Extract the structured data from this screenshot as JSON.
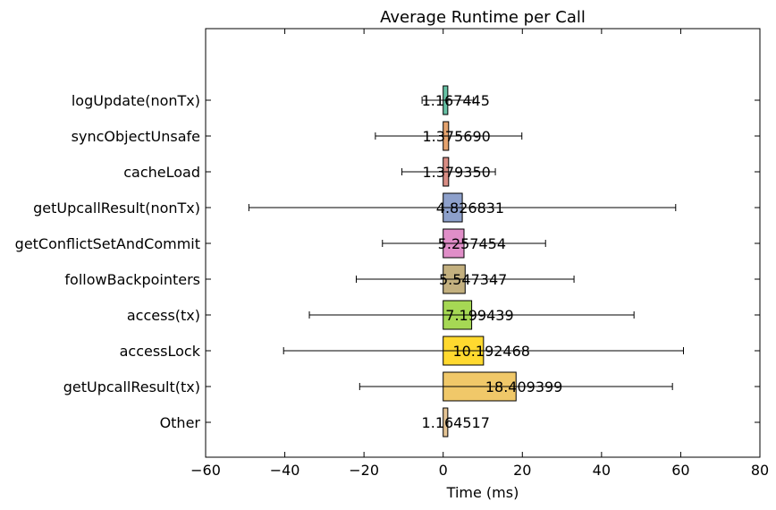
{
  "chart_data": {
    "type": "bar",
    "orientation": "horizontal",
    "title": "Average Runtime per Call",
    "xlabel": "Time (ms)",
    "ylabel": "",
    "xlim": [
      -60,
      80
    ],
    "xticks": [
      -60,
      -40,
      -20,
      0,
      20,
      40,
      60,
      80
    ],
    "xtick_labels": [
      "−60",
      "−40",
      "−20",
      "0",
      "20",
      "40",
      "60",
      "80"
    ],
    "grid": false,
    "categories": [
      "logUpdate(nonTx)",
      "syncObjectUnsafe",
      "cacheLoad",
      "getUpcallResult(nonTx)",
      "getConflictSetAndCommit",
      "followBackpointers",
      "access(tx)",
      "accessLock",
      "getUpcallResult(tx)",
      "Other"
    ],
    "values": [
      1.167445,
      1.37569,
      1.37935,
      4.826831,
      5.257454,
      5.547347,
      7.199439,
      10.192468,
      18.409399,
      1.164517
    ],
    "value_labels": [
      "1.167445",
      "1.375690",
      "1.379350",
      "4.826831",
      "5.257454",
      "5.547347",
      "7.199439",
      "10.192468",
      "18.409399",
      "1.164517"
    ],
    "error": [
      6.5,
      18.5,
      11.8,
      53.9,
      20.6,
      27.5,
      41,
      50.5,
      39.5,
      0
    ],
    "colors": [
      "#66c2a5",
      "#e5a36e",
      "#d98d84",
      "#8da0cb",
      "#e08ec8",
      "#c3b07f",
      "#a6d854",
      "#ffd92f",
      "#f0c869",
      "#e5c494"
    ]
  }
}
